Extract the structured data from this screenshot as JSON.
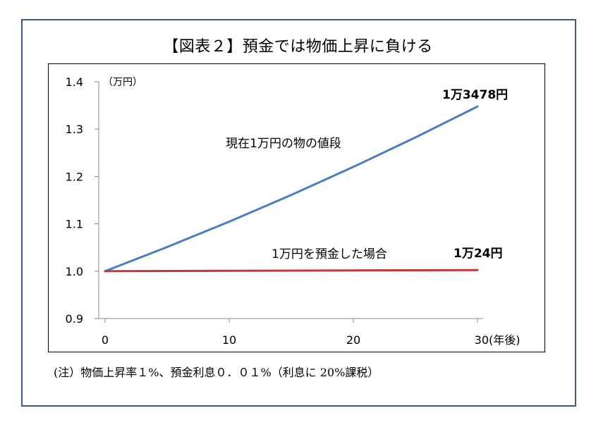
{
  "chart_data": {
    "type": "line",
    "title": "【図表２】預金では物価上昇に負ける",
    "y_unit": "（万円）",
    "x_unit": "(年後)",
    "xlim": [
      0,
      30
    ],
    "ylim": [
      0.9,
      1.4
    ],
    "x_ticks": [
      "0",
      "10",
      "20",
      "30"
    ],
    "y_ticks": [
      "0.9",
      "1.0",
      "1.1",
      "1.2",
      "1.3",
      "1.4"
    ],
    "grid": false,
    "legend": "none",
    "series": [
      {
        "name": "現在1万円の物の値段",
        "color": "#4a7ec2",
        "x": [
          0,
          5,
          10,
          15,
          20,
          25,
          30
        ],
        "y": [
          1.0,
          1.051,
          1.1046,
          1.161,
          1.2202,
          1.2824,
          1.3478
        ],
        "end_label": "1万3478円"
      },
      {
        "name": "1万円を預金した場合",
        "color": "#c0393b",
        "x": [
          0,
          10,
          20,
          30
        ],
        "y": [
          1.0,
          1.0008,
          1.0016,
          1.0024
        ],
        "end_label": "1万24円"
      }
    ]
  },
  "note": "(注）物価上昇率１%、預金利息０．０１%（利息に 20%課税）"
}
